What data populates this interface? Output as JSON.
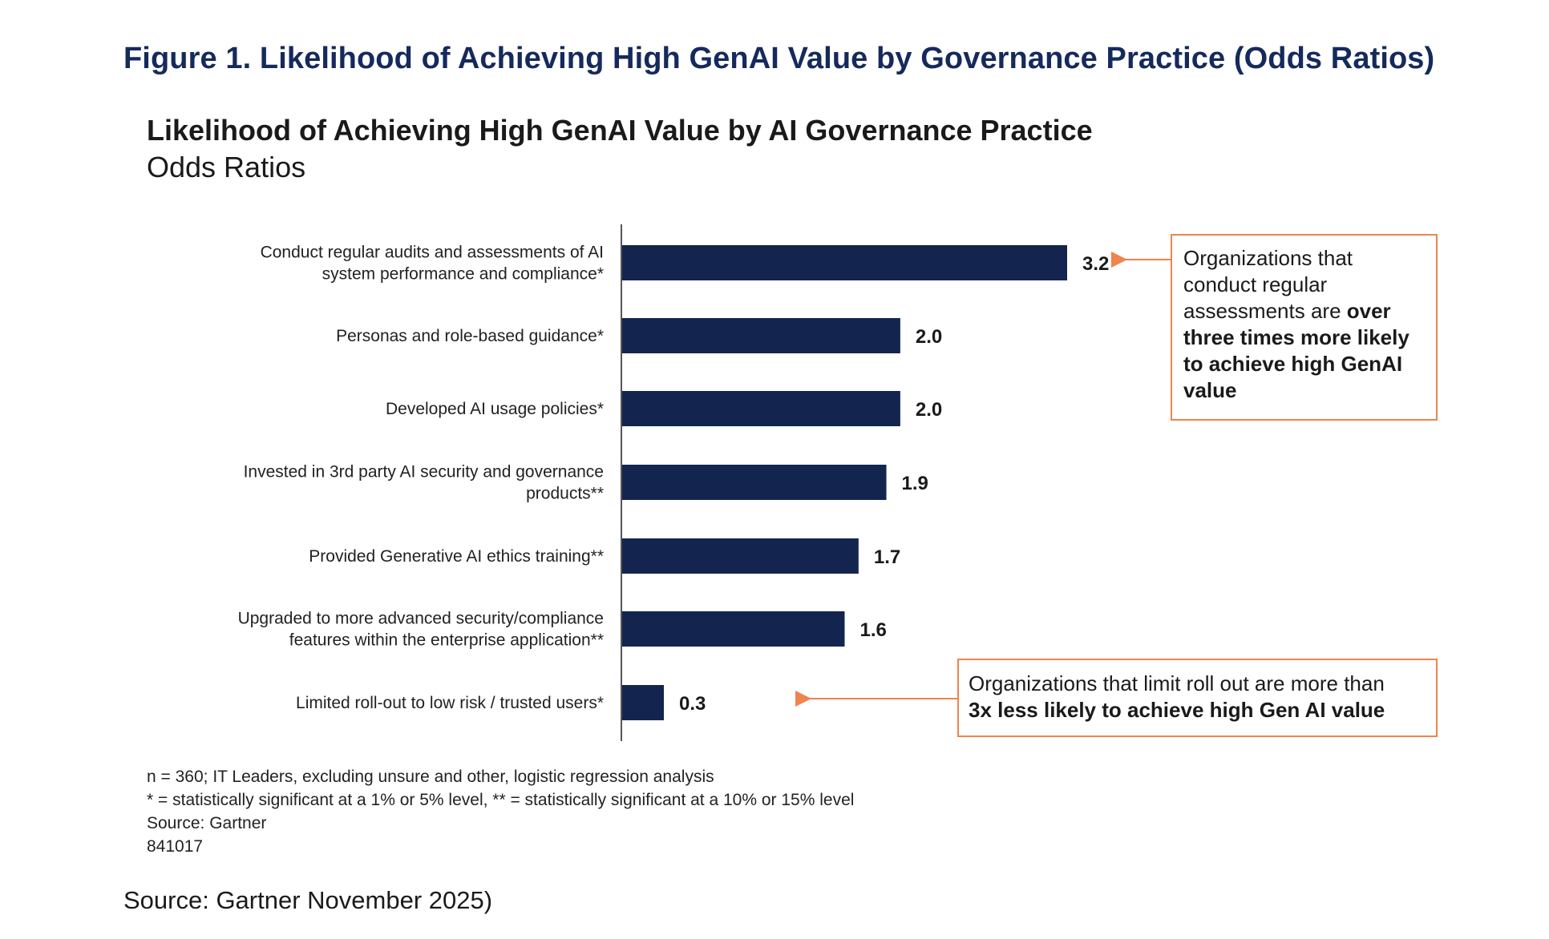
{
  "figure": {
    "heading": "Figure 1. Likelihood of Achieving High GenAI Value by Governance Practice (Odds Ratios)",
    "source": "Source: Gartner November 2025)"
  },
  "chart_data": {
    "type": "bar",
    "orientation": "horizontal",
    "title": "Likelihood of Achieving High GenAI Value by AI Governance Practice",
    "subtitle": "Odds Ratios",
    "categories": [
      [
        "Conduct regular audits and assessments of AI",
        "system performance and compliance*"
      ],
      [
        "Personas and role-based guidance*"
      ],
      [
        "Developed AI usage policies*"
      ],
      [
        "Invested in 3rd party AI security and governance",
        "products**"
      ],
      [
        "Provided Generative AI ethics training**"
      ],
      [
        "Upgraded to more advanced security/compliance",
        "features within the enterprise application**"
      ],
      [
        "Limited roll-out to low risk / trusted users*"
      ]
    ],
    "values": [
      3.2,
      2.0,
      2.0,
      1.9,
      1.7,
      1.6,
      0.3
    ],
    "value_labels": [
      "3.2",
      "2.0",
      "2.0",
      "1.9",
      "1.7",
      "1.6",
      "0.3"
    ],
    "xlim": [
      0,
      3.2
    ],
    "bar_color": "#13254e",
    "annotations": [
      {
        "target_index": 0,
        "parts": [
          {
            "text": "Organizations that conduct regular assessments are ",
            "bold": false
          },
          {
            "text": "over three times more likely to achieve high GenAI value",
            "bold": true
          }
        ]
      },
      {
        "target_index": 6,
        "parts": [
          {
            "text": "Organizations that limit roll out are more than ",
            "bold": false
          },
          {
            "text": "3x less likely to achieve high Gen AI value",
            "bold": true
          }
        ]
      }
    ],
    "notes": [
      "n = 360; IT Leaders, excluding unsure and other, logistic regression analysis",
      "* = statistically significant at a 1% or 5% level, ** = statistically significant at a 10% or 15% level",
      "Source: Gartner",
      "841017"
    ]
  },
  "colors": {
    "heading": "#152a5c",
    "bar": "#13254e",
    "callout_border": "#f0834e",
    "arrow": "#f0834e",
    "axis": "#555555"
  }
}
